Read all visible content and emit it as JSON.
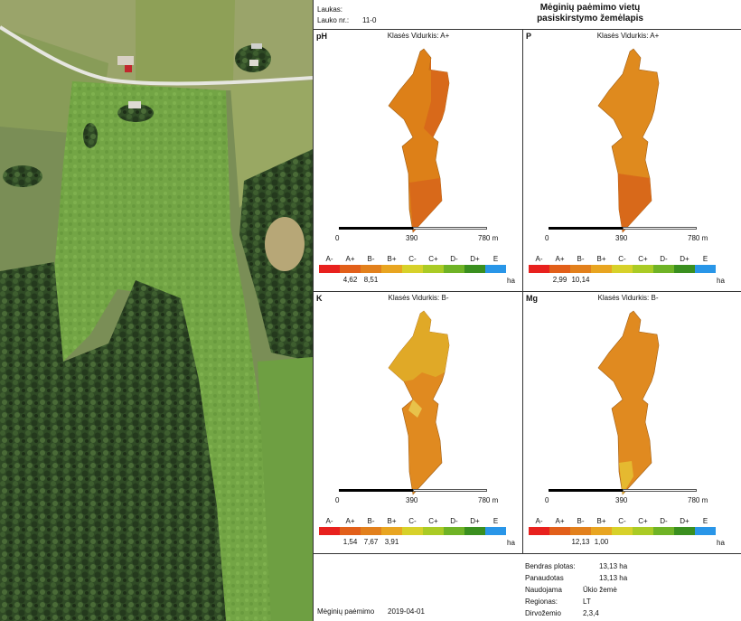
{
  "header": {
    "field_label": "Laukas:",
    "field_no_label": "Lauko nr.:",
    "field_no_value": "11-0",
    "title_line1": "Mėginių paėmimo vietų",
    "title_line2": "pasiskirstymo žemėlapis"
  },
  "scale": {
    "ticks": [
      "0",
      "390",
      "780 m"
    ]
  },
  "legend": {
    "classes": [
      "A-",
      "A+",
      "B-",
      "B+",
      "C-",
      "C+",
      "D-",
      "D+",
      "E"
    ],
    "colors": [
      "#e8211e",
      "#e25f1a",
      "#e2801c",
      "#e8a521",
      "#d7d12a",
      "#aacb25",
      "#6fb326",
      "#3a8f1f",
      "#2996e8"
    ],
    "unit": "ha"
  },
  "panels": [
    {
      "tag": "pH",
      "avg_label": "Klasės Vidurkis: A+",
      "values": [
        "",
        "4,62",
        "8,51",
        "",
        "",
        "",
        "",
        "",
        ""
      ]
    },
    {
      "tag": "P",
      "avg_label": "Klasės Vidurkis: A+",
      "values": [
        "",
        "2,99",
        "10,14",
        "",
        "",
        "",
        "",
        "",
        ""
      ]
    },
    {
      "tag": "K",
      "avg_label": "Klasės Vidurkis: B-",
      "values": [
        "",
        "1,54",
        "7,67",
        "3,91",
        "",
        "",
        "",
        "",
        ""
      ]
    },
    {
      "tag": "Mg",
      "avg_label": "Klasės Vidurkis: B-",
      "values": [
        "",
        "",
        "12,13",
        "1,00",
        "",
        "",
        "",
        "",
        ""
      ]
    }
  ],
  "summary": {
    "rows": [
      {
        "label": "Bendras plotas:",
        "value": "13,13 ha"
      },
      {
        "label": "Panaudotas",
        "value": "13,13 ha"
      },
      {
        "label": "Naudojama",
        "value": "Ūkio žemė"
      },
      {
        "label": "Regionas:",
        "value": "LT"
      },
      {
        "label": "Dirvožemio",
        "value": "2,3,4"
      }
    ],
    "sampling_label": "Mėginių paėmimo",
    "sampling_date": "2019-04-01"
  }
}
